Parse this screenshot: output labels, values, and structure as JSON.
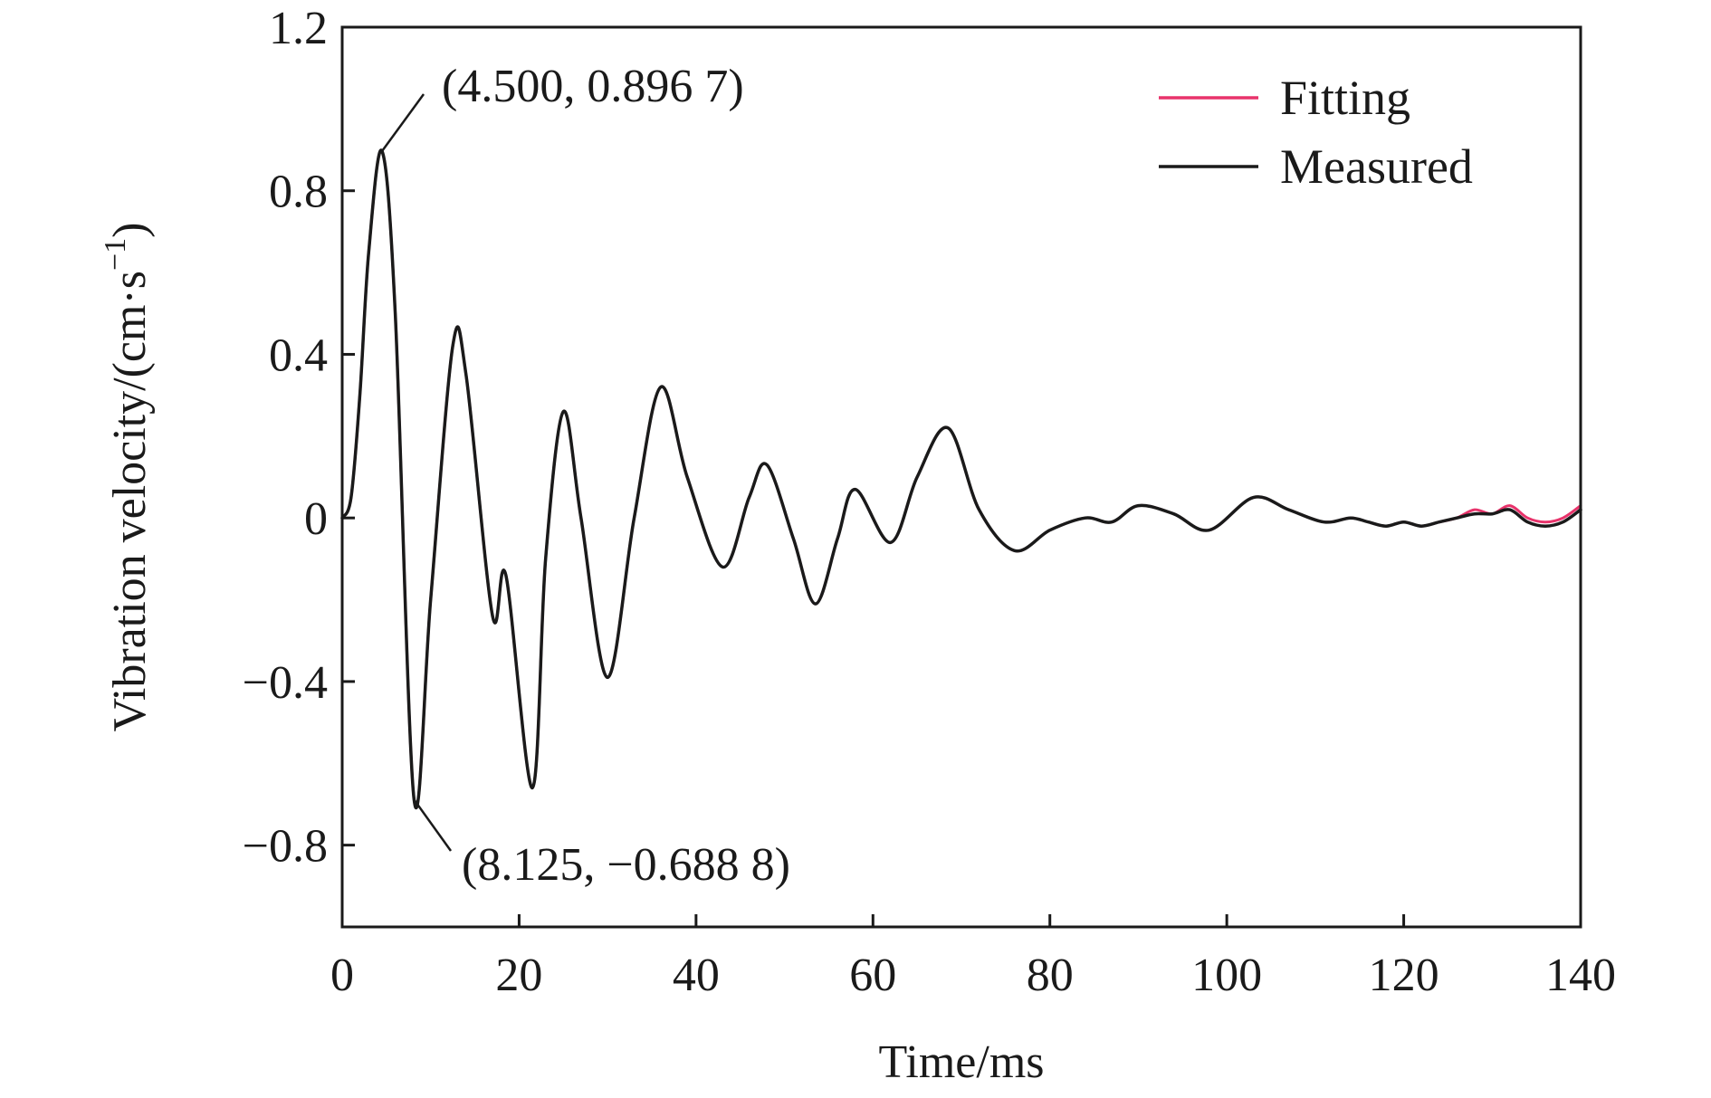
{
  "chart_data": {
    "type": "line",
    "xlabel": "Time/ms",
    "ylabel": "Vibration velocity/(cm·s",
    "ylabel_superscript": "−1",
    "ylabel_close": ")",
    "xlim": [
      0,
      140
    ],
    "ylim": [
      -1.0,
      1.2
    ],
    "xticks": [
      0,
      20,
      40,
      60,
      80,
      100,
      120,
      140
    ],
    "xtick_labels": [
      "0",
      "20",
      "40",
      "60",
      "80",
      "100",
      "120",
      "140"
    ],
    "yticks": [
      -0.8,
      -0.4,
      0,
      0.4,
      0.8,
      1.2
    ],
    "ytick_labels": [
      "−0.8",
      "−0.4",
      "0",
      "0.4",
      "0.8",
      "1.2"
    ],
    "grid": false,
    "legend_position": "top-right",
    "series": [
      {
        "name": "Fitting",
        "color": "#e8336b",
        "x": [
          0,
          1,
          2,
          3,
          4.5,
          6,
          8.125,
          10,
          12.5,
          14,
          17,
          18.5,
          21.5,
          23,
          25,
          27,
          30,
          33,
          36,
          39,
          43,
          46,
          48,
          51,
          53.5,
          56,
          58,
          62,
          65,
          68.5,
          72,
          76,
          80,
          84,
          87,
          90,
          94,
          98,
          103,
          107,
          111,
          114,
          116,
          118,
          120,
          122,
          124,
          126,
          128,
          130,
          132,
          134,
          136,
          138,
          140
        ],
        "y": [
          0,
          0.05,
          0.3,
          0.65,
          0.8967,
          0.5,
          -0.6888,
          -0.2,
          0.42,
          0.35,
          -0.24,
          -0.14,
          -0.66,
          -0.1,
          0.26,
          0.0,
          -0.39,
          0.0,
          0.32,
          0.1,
          -0.12,
          0.05,
          0.13,
          -0.05,
          -0.21,
          -0.05,
          0.07,
          -0.06,
          0.1,
          0.22,
          0.02,
          -0.08,
          -0.03,
          0.0,
          -0.01,
          0.03,
          0.01,
          -0.03,
          0.05,
          0.02,
          -0.01,
          0.0,
          -0.01,
          -0.02,
          -0.01,
          -0.02,
          -0.01,
          0.0,
          0.02,
          0.01,
          0.03,
          0.0,
          -0.01,
          0.0,
          0.03
        ]
      },
      {
        "name": "Measured",
        "color": "#1a1a1a",
        "x": [
          0,
          1,
          2,
          3,
          4.5,
          6,
          8.125,
          10,
          12.5,
          14,
          17,
          18.5,
          21.5,
          23,
          25,
          27,
          30,
          33,
          36,
          39,
          43,
          46,
          48,
          51,
          53.5,
          56,
          58,
          62,
          65,
          68.5,
          72,
          76,
          80,
          84,
          87,
          90,
          94,
          98,
          103,
          107,
          111,
          114,
          116,
          118,
          120,
          122,
          124,
          126,
          128,
          130,
          132,
          134,
          136,
          138,
          140
        ],
        "y": [
          0,
          0.05,
          0.3,
          0.65,
          0.8967,
          0.5,
          -0.6888,
          -0.2,
          0.42,
          0.35,
          -0.24,
          -0.14,
          -0.66,
          -0.1,
          0.26,
          0.0,
          -0.39,
          0.0,
          0.32,
          0.1,
          -0.12,
          0.05,
          0.13,
          -0.05,
          -0.21,
          -0.05,
          0.07,
          -0.06,
          0.1,
          0.22,
          0.02,
          -0.08,
          -0.03,
          0.0,
          -0.01,
          0.03,
          0.01,
          -0.03,
          0.05,
          0.02,
          -0.01,
          0.0,
          -0.01,
          -0.02,
          -0.01,
          -0.02,
          -0.01,
          0.0,
          0.01,
          0.01,
          0.02,
          -0.01,
          -0.02,
          -0.01,
          0.02
        ]
      }
    ],
    "annotations": [
      {
        "text": "(4.500, 0.896 7)",
        "x": 4.5,
        "y": 0.8967
      },
      {
        "text": "(8.125, −0.688 8)",
        "x": 8.125,
        "y": -0.6888
      }
    ]
  }
}
